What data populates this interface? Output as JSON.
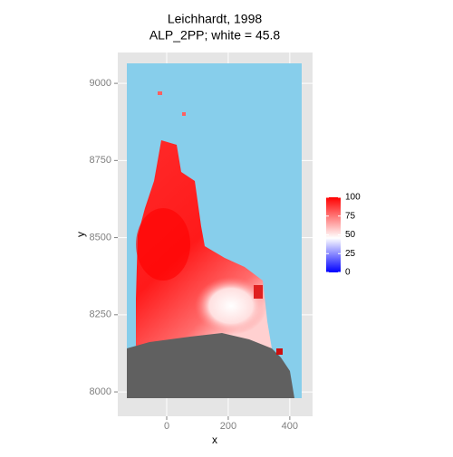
{
  "chart_data": {
    "type": "raster",
    "title": "Leichhardt, 1998",
    "subtitle": "ALP_2PP; white = 45.8",
    "x_label": "x",
    "y_label": "y",
    "xlim": [
      -159,
      474
    ],
    "ylim": [
      7921,
      9100
    ],
    "xticks": [
      0,
      200,
      400
    ],
    "yticks": [
      8000,
      8250,
      8500,
      8750,
      9000
    ],
    "grid": true,
    "scale": {
      "low": "#0000ff",
      "mid": "#ffffff",
      "high": "#ff0000",
      "midpoint": 45.8,
      "limits": [
        0,
        100
      ],
      "breaks": [
        0,
        25,
        50,
        75,
        100
      ]
    }
  }
}
